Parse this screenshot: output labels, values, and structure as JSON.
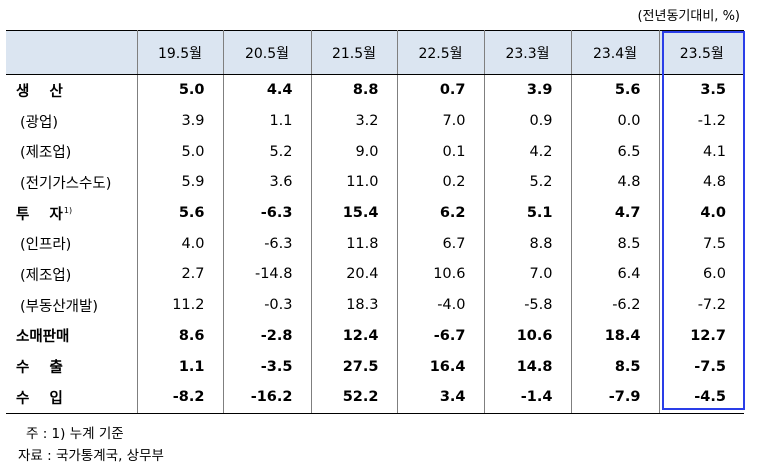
{
  "unit_label": "(전년동기대비, %)",
  "columns": [
    "",
    "19.5월",
    "20.5월",
    "21.5월",
    "22.5월",
    "23.3월",
    "23.4월",
    "23.5월"
  ],
  "rows": [
    {
      "label": "생    산",
      "sup": "",
      "bold": true,
      "sub": false,
      "values": [
        "5.0",
        "4.4",
        "8.8",
        "0.7",
        "3.9",
        "5.6",
        "3.5"
      ]
    },
    {
      "label": "(광업)",
      "sup": "",
      "bold": false,
      "sub": true,
      "values": [
        "3.9",
        "1.1",
        "3.2",
        "7.0",
        "0.9",
        "0.0",
        "-1.2"
      ]
    },
    {
      "label": "(제조업)",
      "sup": "",
      "bold": false,
      "sub": true,
      "values": [
        "5.0",
        "5.2",
        "9.0",
        "0.1",
        "4.2",
        "6.5",
        "4.1"
      ]
    },
    {
      "label": "(전기가스수도)",
      "sup": "",
      "bold": false,
      "sub": true,
      "values": [
        "5.9",
        "3.6",
        "11.0",
        "0.2",
        "5.2",
        "4.8",
        "4.8"
      ]
    },
    {
      "label": "투    자",
      "sup": "1)",
      "bold": true,
      "sub": false,
      "values": [
        "5.6",
        "-6.3",
        "15.4",
        "6.2",
        "5.1",
        "4.7",
        "4.0"
      ]
    },
    {
      "label": "(인프라)",
      "sup": "",
      "bold": false,
      "sub": true,
      "values": [
        "4.0",
        "-6.3",
        "11.8",
        "6.7",
        "8.8",
        "8.5",
        "7.5"
      ]
    },
    {
      "label": "(제조업)",
      "sup": "",
      "bold": false,
      "sub": true,
      "values": [
        "2.7",
        "-14.8",
        "20.4",
        "10.6",
        "7.0",
        "6.4",
        "6.0"
      ]
    },
    {
      "label": "(부동산개발)",
      "sup": "",
      "bold": false,
      "sub": true,
      "values": [
        "11.2",
        "-0.3",
        "18.3",
        "-4.0",
        "-5.8",
        "-6.2",
        "-7.2"
      ]
    },
    {
      "label": "소매판매",
      "sup": "",
      "bold": true,
      "sub": false,
      "values": [
        "8.6",
        "-2.8",
        "12.4",
        "-6.7",
        "10.6",
        "18.4",
        "12.7"
      ]
    },
    {
      "label": "수    출",
      "sup": "",
      "bold": true,
      "sub": false,
      "values": [
        "1.1",
        "-3.5",
        "27.5",
        "16.4",
        "14.8",
        "8.5",
        "-7.5"
      ]
    },
    {
      "label": "수    입",
      "sup": "",
      "bold": true,
      "sub": false,
      "values": [
        "-8.2",
        "-16.2",
        "52.2",
        "3.4",
        "-1.4",
        "-7.9",
        "-4.5"
      ]
    }
  ],
  "notes": {
    "note1": "주 : 1) 누계 기준",
    "note2": "자료 : 국가통계국, 상무부"
  },
  "highlight_color": "#2a3ee8",
  "header_bg": "#dbe5f1"
}
